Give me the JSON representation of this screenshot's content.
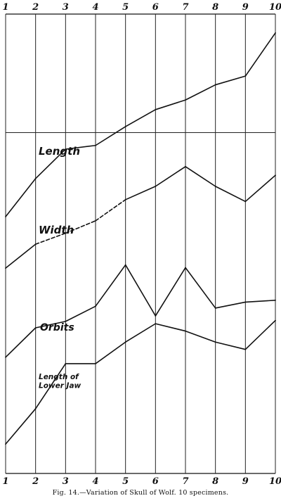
{
  "caption": "Fig. 14.—Variation of Skull of Wolf.  10 specimens.",
  "chart_data": {
    "type": "line",
    "x": [
      1,
      2,
      3,
      4,
      5,
      6,
      7,
      8,
      9,
      10
    ],
    "xticks_top": [
      "1",
      "2",
      "3",
      "4",
      "5",
      "6",
      "7",
      "8",
      "9",
      "10"
    ],
    "xticks_bottom": [
      "1",
      "2",
      "3",
      "4",
      "5",
      "6",
      "7",
      "8",
      "9",
      "10"
    ],
    "ylim": [
      0,
      100
    ],
    "grid": "vertical lines at each specimen",
    "reference_line": 74.2,
    "series": [
      {
        "name": "Length",
        "values": [
          55.9,
          64.2,
          70.6,
          71.4,
          75.5,
          79.2,
          81.3,
          84.6,
          86.5,
          95.9
        ],
        "dashed_segments": [],
        "color": "#111111"
      },
      {
        "name": "Width",
        "values": [
          44.7,
          49.9,
          52.3,
          55.0,
          59.6,
          62.5,
          66.8,
          62.5,
          59.2,
          64.9
        ],
        "dashed_segments": [
          1,
          2,
          3,
          9
        ],
        "color": "#111111"
      },
      {
        "name": "Orbits",
        "values": [
          25.3,
          31.7,
          33.1,
          36.4,
          45.4,
          34.3,
          44.8,
          36.0,
          37.3,
          37.7
        ],
        "dashed_segments": [],
        "color": "#111111"
      },
      {
        "name": "Length of\nLower Jaw",
        "values": [
          6.4,
          14.1,
          23.9,
          23.9,
          28.6,
          32.6,
          31.0,
          28.6,
          27.0,
          33.3
        ],
        "dashed_segments": [],
        "color": "#111111"
      }
    ],
    "labels": [
      {
        "series": "Length",
        "lines": [
          "Length"
        ]
      },
      {
        "series": "Width",
        "lines": [
          "Width"
        ]
      },
      {
        "series": "Orbits",
        "lines": [
          "Orbits"
        ]
      },
      {
        "series": "Length of Lower Jaw",
        "lines": [
          "Length of",
          "Lower Jaw"
        ]
      }
    ]
  }
}
